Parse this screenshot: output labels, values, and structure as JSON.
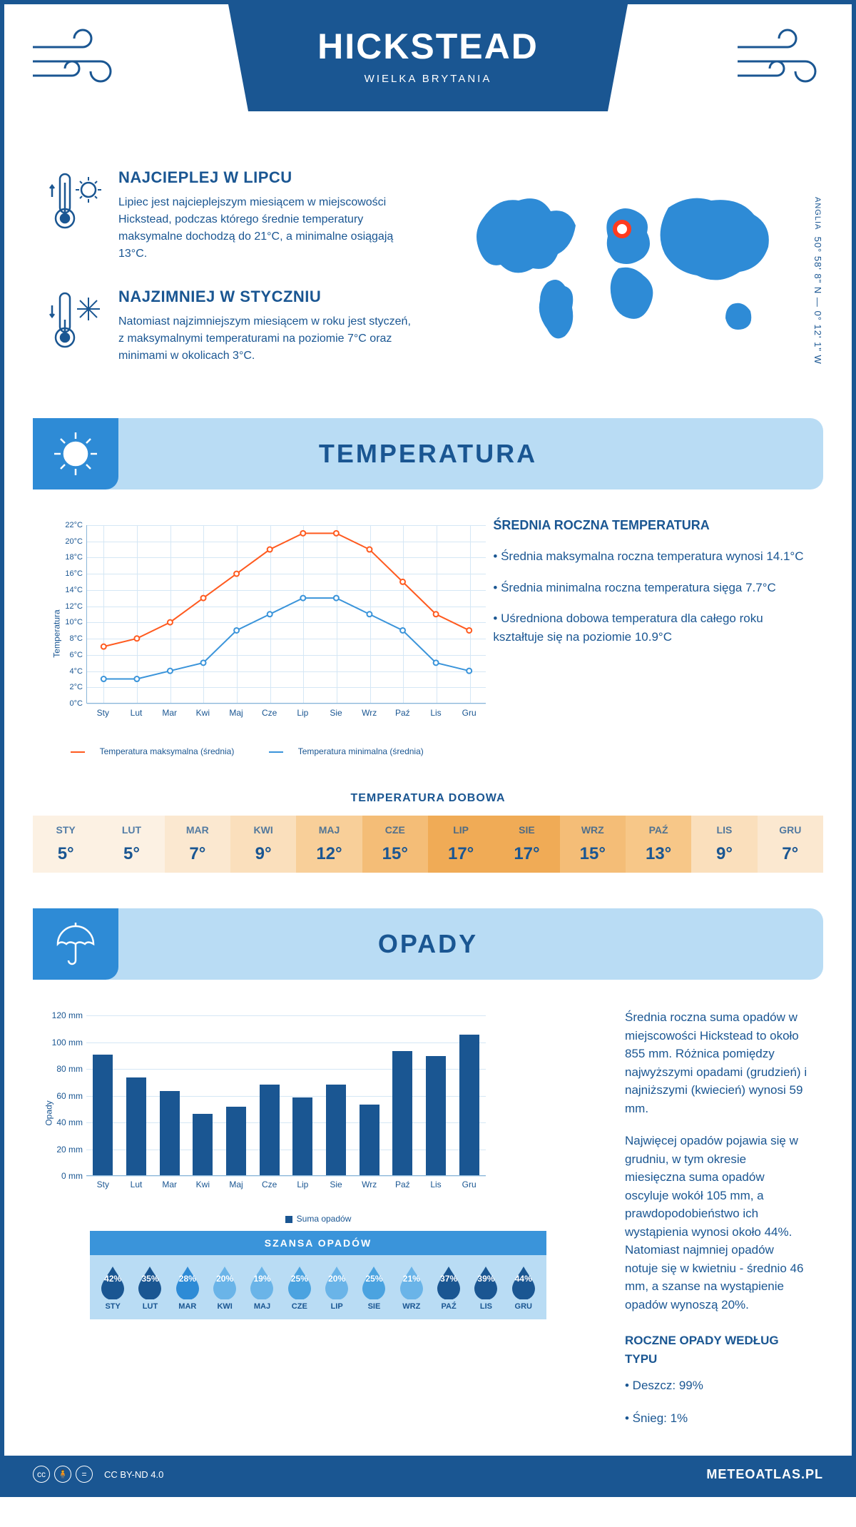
{
  "header": {
    "title": "HICKSTEAD",
    "subtitle": "WIELKA BRYTANIA",
    "coords": "50° 58' 8\" N — 0° 12' 1\" W",
    "region": "ANGLIA"
  },
  "colors": {
    "primary": "#1a5692",
    "secondary": "#2e8bd6",
    "light": "#b9dcf4",
    "max_line": "#ff5a1f",
    "min_line": "#3a94da",
    "bar": "#1a5692"
  },
  "facts": {
    "warm": {
      "title": "NAJCIEPLEJ W LIPCU",
      "text": "Lipiec jest najcieplejszym miesiącem w miejscowości Hickstead, podczas którego średnie temperatury maksymalne dochodzą do 21°C, a minimalne osiągają 13°C."
    },
    "cold": {
      "title": "NAJZIMNIEJ W STYCZNIU",
      "text": "Natomiast najzimniejszym miesiącem w roku jest styczeń, z maksymalnymi temperaturami na poziomie 7°C oraz minimami w okolicach 3°C."
    }
  },
  "temperature": {
    "section_title": "TEMPERATURA",
    "y_label": "Temperatura",
    "ylim": [
      0,
      22
    ],
    "ytick_step": 2,
    "months": [
      "Sty",
      "Lut",
      "Mar",
      "Kwi",
      "Maj",
      "Cze",
      "Lip",
      "Sie",
      "Wrz",
      "Paź",
      "Lis",
      "Gru"
    ],
    "max_series": [
      7,
      8,
      10,
      13,
      16,
      19,
      21,
      21,
      19,
      15,
      11,
      9
    ],
    "min_series": [
      3,
      3,
      4,
      5,
      9,
      11,
      13,
      13,
      11,
      9,
      5,
      4
    ],
    "legend_max": "Temperatura maksymalna (średnia)",
    "legend_min": "Temperatura minimalna (średnia)",
    "info_title": "ŚREDNIA ROCZNA TEMPERATURA",
    "info_points": [
      "• Średnia maksymalna roczna temperatura wynosi 14.1°C",
      "• Średnia minimalna roczna temperatura sięga 7.7°C",
      "• Uśredniona dobowa temperatura dla całego roku kształtuje się na poziomie 10.9°C"
    ],
    "daily_title": "TEMPERATURA DOBOWA",
    "daily_months": [
      "STY",
      "LUT",
      "MAR",
      "KWI",
      "MAJ",
      "CZE",
      "LIP",
      "SIE",
      "WRZ",
      "PAŹ",
      "LIS",
      "GRU"
    ],
    "daily_values": [
      "5°",
      "5°",
      "7°",
      "9°",
      "12°",
      "15°",
      "17°",
      "17°",
      "15°",
      "13°",
      "9°",
      "7°"
    ],
    "daily_colors": [
      "#fcf1e3",
      "#fcf1e3",
      "#fbe8d0",
      "#fadfbc",
      "#f8cf99",
      "#f4bd77",
      "#f0ab56",
      "#f0ab56",
      "#f4bd77",
      "#f7c788",
      "#fadfbc",
      "#fbe8d0"
    ]
  },
  "precip": {
    "section_title": "OPADY",
    "y_label": "Opady",
    "ylim": [
      0,
      120
    ],
    "ytick_step": 20,
    "months": [
      "Sty",
      "Lut",
      "Mar",
      "Kwi",
      "Maj",
      "Cze",
      "Lip",
      "Sie",
      "Wrz",
      "Paź",
      "Lis",
      "Gru"
    ],
    "values": [
      90,
      73,
      63,
      46,
      51,
      68,
      58,
      68,
      53,
      93,
      89,
      105
    ],
    "legend": "Suma opadów",
    "text1": "Średnia roczna suma opadów w miejscowości Hickstead to około 855 mm. Różnica pomiędzy najwyższymi opadami (grudzień) i najniższymi (kwiecień) wynosi 59 mm.",
    "text2": "Najwięcej opadów pojawia się w grudniu, w tym okresie miesięczna suma opadów oscyluje wokół 105 mm, a prawdopodobieństwo ich wystąpienia wynosi około 44%. Natomiast najmniej opadów notuje się w kwietniu - średnio 46 mm, a szanse na wystąpienie opadów wynoszą 20%.",
    "type_title": "ROCZNE OPADY WEDŁUG TYPU",
    "type_rain": "• Deszcz: 99%",
    "type_snow": "• Śnieg: 1%",
    "chance_title": "SZANSA OPADÓW",
    "chance_months": [
      "STY",
      "LUT",
      "MAR",
      "KWI",
      "MAJ",
      "CZE",
      "LIP",
      "SIE",
      "WRZ",
      "PAŹ",
      "LIS",
      "GRU"
    ],
    "chance_values": [
      "42%",
      "35%",
      "28%",
      "20%",
      "19%",
      "25%",
      "20%",
      "25%",
      "21%",
      "37%",
      "39%",
      "44%"
    ],
    "chance_colors": [
      "#1a5692",
      "#1a5692",
      "#2e8bd6",
      "#6ab4e8",
      "#6ab4e8",
      "#4ba3e0",
      "#6ab4e8",
      "#4ba3e0",
      "#6ab4e8",
      "#1a5692",
      "#1a5692",
      "#1a5692"
    ]
  },
  "footer": {
    "license": "CC BY-ND 4.0",
    "brand": "METEOATLAS.PL"
  }
}
